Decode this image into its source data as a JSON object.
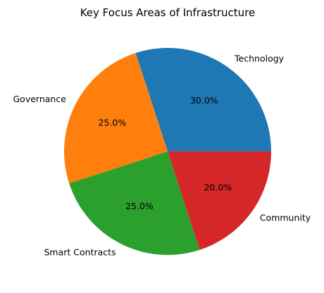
{
  "chart_data": {
    "type": "pie",
    "title": "Key Focus Areas of Infrastructure",
    "labels": [
      "Technology",
      "Governance",
      "Smart Contracts",
      "Community"
    ],
    "values": [
      30.0,
      25.0,
      25.0,
      20.0
    ],
    "percent_labels": [
      "30.0%",
      "25.0%",
      "25.0%",
      "20.0%"
    ],
    "colors": [
      "#1f77b4",
      "#ff7f0e",
      "#2ca02c",
      "#d62728"
    ],
    "start_angle": 0,
    "direction": "counterclockwise"
  }
}
